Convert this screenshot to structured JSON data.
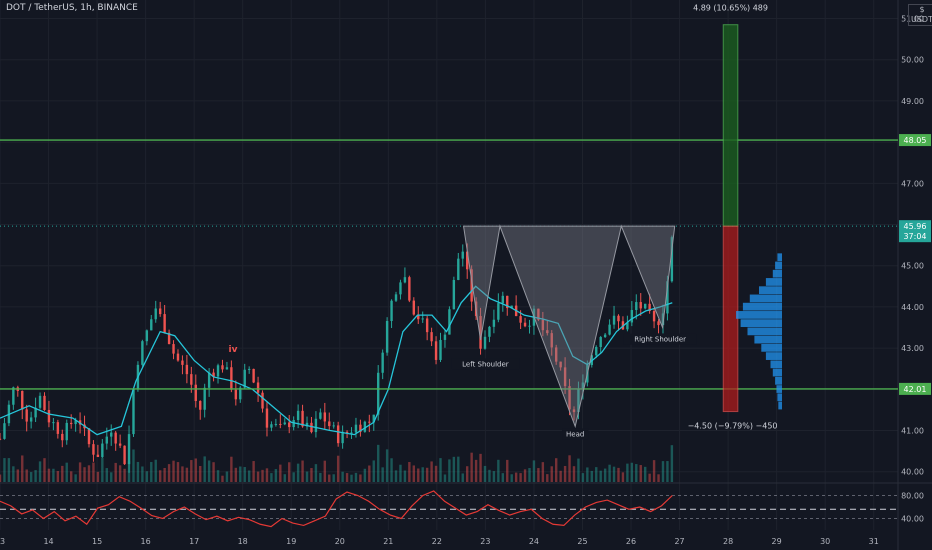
{
  "header": {
    "symbol": "DOT / TetherUS, 1h, BINANCE",
    "currency_line1": "$",
    "currency_line2": "USDT"
  },
  "colors": {
    "background": "#131722",
    "up": "#26a69a",
    "down": "#ef5350",
    "ma": "#26c6da",
    "support": "#4caf50",
    "rsi": "#e53935",
    "target_zone": "#1b5e20",
    "stop_zone": "#b71c1c",
    "volume_profile": "#2196f3"
  },
  "chart_data": {
    "type": "candlestick",
    "title": "DOT / TetherUS, 1h, BINANCE",
    "ylim": [
      39.75,
      51.45
    ],
    "y_ticks": [
      "40.00",
      "41.00",
      "42.00",
      "43.00",
      "44.00",
      "45.00",
      "46.00",
      "47.00",
      "48.00",
      "49.00",
      "50.00",
      "51.00"
    ],
    "x_ticks": [
      "13",
      "14",
      "15",
      "16",
      "17",
      "18",
      "19",
      "20",
      "21",
      "22",
      "23",
      "24",
      "25",
      "26",
      "27",
      "28",
      "29",
      "30",
      "31"
    ],
    "x_tick_units": [
      13,
      14,
      15,
      16,
      17,
      18,
      19,
      20,
      21,
      22,
      23,
      24,
      25,
      26,
      27,
      28,
      29,
      30,
      31
    ],
    "xlim": [
      13,
      31.5
    ],
    "close_path": [
      [
        13.0,
        40.8
      ],
      [
        13.3,
        42.1
      ],
      [
        13.6,
        41.2
      ],
      [
        13.8,
        41.9
      ],
      [
        14.0,
        41.3
      ],
      [
        14.3,
        40.9
      ],
      [
        14.6,
        41.4
      ],
      [
        14.8,
        40.7
      ],
      [
        15.0,
        40.4
      ],
      [
        15.3,
        41.1
      ],
      [
        15.6,
        40.2
      ],
      [
        15.8,
        42.6
      ],
      [
        16.0,
        43.3
      ],
      [
        16.2,
        44.0
      ],
      [
        16.4,
        43.5
      ],
      [
        16.6,
        42.8
      ],
      [
        16.9,
        42.3
      ],
      [
        17.1,
        41.4
      ],
      [
        17.3,
        42.4
      ],
      [
        17.6,
        42.6
      ],
      [
        17.9,
        41.7
      ],
      [
        18.1,
        42.6
      ],
      [
        18.3,
        42.0
      ],
      [
        18.5,
        41.2
      ],
      [
        18.8,
        41.0
      ],
      [
        19.1,
        41.4
      ],
      [
        19.4,
        40.9
      ],
      [
        19.6,
        41.4
      ],
      [
        19.8,
        41.1
      ],
      [
        20.0,
        40.8
      ],
      [
        20.3,
        41.1
      ],
      [
        20.6,
        41.2
      ],
      [
        20.7,
        41.5
      ],
      [
        20.9,
        43.2
      ],
      [
        21.1,
        44.3
      ],
      [
        21.3,
        44.9
      ],
      [
        21.5,
        44.0
      ],
      [
        21.8,
        43.4
      ],
      [
        22.0,
        42.8
      ],
      [
        22.2,
        43.6
      ],
      [
        22.4,
        44.9
      ],
      [
        22.5,
        45.6
      ],
      [
        22.6,
        44.9
      ],
      [
        22.8,
        43.7
      ],
      [
        22.9,
        43.1
      ],
      [
        23.1,
        43.6
      ],
      [
        23.3,
        44.3
      ],
      [
        23.6,
        43.9
      ],
      [
        23.8,
        43.6
      ],
      [
        24.0,
        43.8
      ],
      [
        24.2,
        43.4
      ],
      [
        24.5,
        42.6
      ],
      [
        24.7,
        41.7
      ],
      [
        24.8,
        41.3
      ],
      [
        25.0,
        42.3
      ],
      [
        25.3,
        43.2
      ],
      [
        25.6,
        43.7
      ],
      [
        25.9,
        43.5
      ],
      [
        26.1,
        44.1
      ],
      [
        26.3,
        43.9
      ],
      [
        26.5,
        43.5
      ],
      [
        26.7,
        44.1
      ],
      [
        26.85,
        45.7
      ]
    ],
    "ma_path": [
      [
        13.0,
        41.3
      ],
      [
        13.6,
        41.6
      ],
      [
        14.0,
        41.4
      ],
      [
        14.5,
        41.3
      ],
      [
        15.0,
        40.9
      ],
      [
        15.5,
        41.1
      ],
      [
        15.8,
        42.2
      ],
      [
        16.3,
        43.4
      ],
      [
        16.6,
        43.3
      ],
      [
        17.0,
        42.7
      ],
      [
        17.4,
        42.3
      ],
      [
        17.8,
        42.2
      ],
      [
        18.2,
        42.0
      ],
      [
        18.6,
        41.6
      ],
      [
        19.0,
        41.2
      ],
      [
        19.4,
        41.1
      ],
      [
        19.8,
        41.0
      ],
      [
        20.3,
        40.9
      ],
      [
        20.7,
        41.2
      ],
      [
        21.0,
        42.0
      ],
      [
        21.3,
        43.4
      ],
      [
        21.6,
        43.8
      ],
      [
        21.9,
        43.8
      ],
      [
        22.2,
        43.4
      ],
      [
        22.5,
        44.1
      ],
      [
        22.8,
        44.5
      ],
      [
        23.1,
        44.2
      ],
      [
        23.5,
        44.0
      ],
      [
        23.8,
        43.8
      ],
      [
        24.2,
        43.7
      ],
      [
        24.5,
        43.6
      ],
      [
        24.8,
        42.8
      ],
      [
        25.1,
        42.6
      ],
      [
        25.4,
        42.9
      ],
      [
        25.7,
        43.4
      ],
      [
        26.0,
        43.7
      ],
      [
        26.3,
        43.9
      ],
      [
        26.6,
        44.0
      ],
      [
        26.85,
        44.1
      ]
    ],
    "levels": [
      {
        "price": 48.05,
        "label": "48.05"
      },
      {
        "price": 42.01,
        "label": "42.01"
      }
    ],
    "last_price": {
      "price": 45.96,
      "label": "45.96",
      "countdown": "37:04"
    },
    "pattern": {
      "name": "inverse head and shoulders",
      "labels": [
        {
          "text": "Left Shoulder",
          "x": 23.0,
          "y": 42.8,
          "anchor": "below"
        },
        {
          "text": "Head",
          "x": 24.85,
          "y": 41.1,
          "anchor": "below"
        },
        {
          "text": "Right Shoulder",
          "x": 26.6,
          "y": 43.4,
          "anchor": "below"
        }
      ],
      "points": [
        [
          22.55,
          45.96
        ],
        [
          22.9,
          43.2
        ],
        [
          23.3,
          45.96
        ],
        [
          24.85,
          41.1
        ],
        [
          25.8,
          45.96
        ],
        [
          26.65,
          43.5
        ],
        [
          26.9,
          45.96
        ]
      ]
    },
    "annotation_iv": {
      "text": "iv",
      "x": 17.8,
      "y": 42.9
    },
    "position": {
      "entry": 45.96,
      "target": 50.85,
      "stop": 41.46,
      "x_start": 27.9,
      "x_end": 28.2,
      "target_text": "4.89 (10.65%) 489",
      "stop_text": "−4.50 (−9.79%) −450"
    },
    "volume_profile": [
      [
        45.2,
        0.1
      ],
      [
        45.0,
        0.15
      ],
      [
        44.8,
        0.2
      ],
      [
        44.6,
        0.35
      ],
      [
        44.4,
        0.5
      ],
      [
        44.2,
        0.7
      ],
      [
        44.0,
        0.85
      ],
      [
        43.8,
        1.0
      ],
      [
        43.6,
        0.9
      ],
      [
        43.4,
        0.75
      ],
      [
        43.2,
        0.6
      ],
      [
        43.0,
        0.45
      ],
      [
        42.8,
        0.35
      ],
      [
        42.6,
        0.25
      ],
      [
        42.4,
        0.2
      ],
      [
        42.2,
        0.15
      ],
      [
        42.0,
        0.12
      ],
      [
        41.8,
        0.1
      ],
      [
        41.6,
        0.08
      ]
    ],
    "rsi": {
      "levels": [
        {
          "value": 80,
          "label": "80.00"
        },
        {
          "value": 40,
          "label": "40.00"
        }
      ],
      "midline": 56,
      "ylim": [
        20,
        100
      ],
      "values": [
        70,
        62,
        48,
        55,
        40,
        52,
        36,
        44,
        30,
        58,
        64,
        78,
        70,
        58,
        45,
        40,
        52,
        60,
        48,
        38,
        44,
        36,
        42,
        38,
        30,
        26,
        40,
        32,
        28,
        36,
        44,
        74,
        86,
        80,
        70,
        56,
        46,
        40,
        62,
        80,
        88,
        70,
        58,
        46,
        52,
        64,
        54,
        46,
        52,
        56,
        40,
        30,
        28,
        46,
        60,
        68,
        72,
        64,
        56,
        60,
        52,
        62,
        80
      ]
    }
  }
}
